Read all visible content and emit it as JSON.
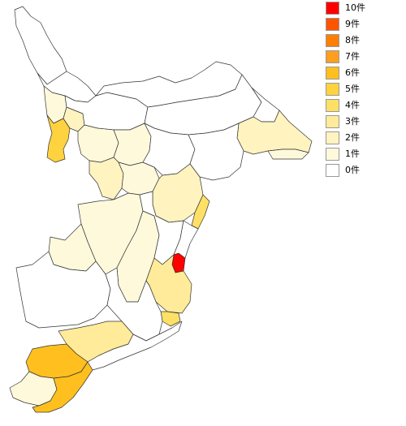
{
  "legend": {
    "items": [
      {
        "label": "10件",
        "count": 10,
        "color": "#ff0000"
      },
      {
        "label": "9件",
        "count": 9,
        "color": "#ff5500"
      },
      {
        "label": "8件",
        "count": 8,
        "color": "#ff7f00"
      },
      {
        "label": "7件",
        "count": 7,
        "color": "#ff9f1f"
      },
      {
        "label": "6件",
        "count": 6,
        "color": "#ffbf1f"
      },
      {
        "label": "5件",
        "count": 5,
        "color": "#ffd23f"
      },
      {
        "label": "4件",
        "count": 4,
        "color": "#ffe066"
      },
      {
        "label": "3件",
        "count": 3,
        "color": "#ffeb99"
      },
      {
        "label": "2件",
        "count": 2,
        "color": "#fff3bf"
      },
      {
        "label": "1件",
        "count": 1,
        "color": "#fff9dc"
      },
      {
        "label": "0件",
        "count": 0,
        "color": "#ffffff"
      }
    ]
  },
  "regions": [
    {
      "id": "north-tip",
      "count": 0
    },
    {
      "id": "north-west-a",
      "count": 0
    },
    {
      "id": "north-west-b",
      "count": 1
    },
    {
      "id": "north-west-c",
      "count": 5
    },
    {
      "id": "north-west-d",
      "count": 2
    },
    {
      "id": "north-center-a",
      "count": 0
    },
    {
      "id": "north-center-b",
      "count": 0
    },
    {
      "id": "north-east-a",
      "count": 0
    },
    {
      "id": "north-east-b",
      "count": 0
    },
    {
      "id": "east-tip",
      "count": 2
    },
    {
      "id": "east-tip-small",
      "count": 1
    },
    {
      "id": "center-a",
      "count": 1
    },
    {
      "id": "center-b",
      "count": 1
    },
    {
      "id": "center-c",
      "count": 2
    },
    {
      "id": "center-d",
      "count": 1
    },
    {
      "id": "center-e",
      "count": 0
    },
    {
      "id": "center-f",
      "count": 0
    },
    {
      "id": "east-coast-a",
      "count": 2
    },
    {
      "id": "east-coast-b",
      "count": 4
    },
    {
      "id": "east-coast-red",
      "count": 10
    },
    {
      "id": "mid-west-a",
      "count": 1
    },
    {
      "id": "mid-west-b",
      "count": 1
    },
    {
      "id": "mid-center-a",
      "count": 1
    },
    {
      "id": "mid-center-b",
      "count": 0
    },
    {
      "id": "mid-center-c",
      "count": 0
    },
    {
      "id": "mid-east-a",
      "count": 3
    },
    {
      "id": "mid-east-b",
      "count": 4
    },
    {
      "id": "south-west-a",
      "count": 0
    },
    {
      "id": "south-west-b",
      "count": 0
    },
    {
      "id": "south-center",
      "count": 3
    },
    {
      "id": "south-orange",
      "count": 6
    },
    {
      "id": "south-tip-light",
      "count": 1
    },
    {
      "id": "south-tip-orange",
      "count": 6
    },
    {
      "id": "south-east",
      "count": 0
    }
  ]
}
